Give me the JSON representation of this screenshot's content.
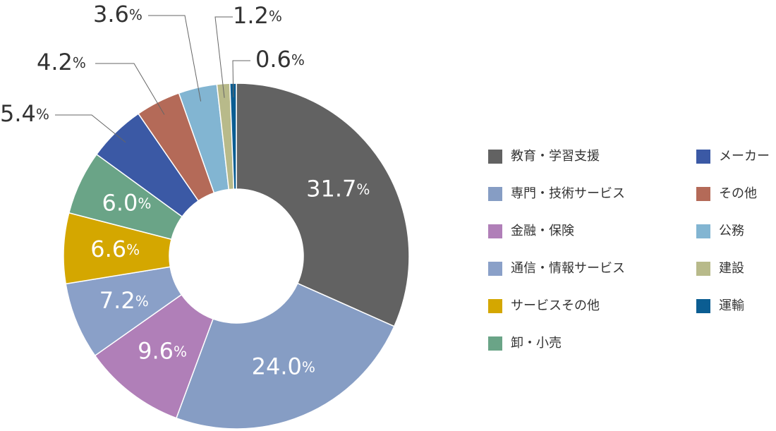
{
  "chart_data": {
    "type": "donut",
    "categories": [
      "教育・学習支援",
      "専門・技術サービス",
      "金融・保険",
      "通信・情報サービス",
      "サービスその他",
      "卸・小売",
      "メーカー",
      "その他",
      "公務",
      "建設",
      "運輸"
    ],
    "values": [
      31.7,
      24.0,
      9.6,
      7.2,
      6.6,
      6.0,
      5.4,
      4.2,
      3.6,
      1.2,
      0.6
    ],
    "value_labels": [
      "31.7%",
      "24.0%",
      "9.6%",
      "7.2%",
      "6.6%",
      "6.0%",
      "5.4%",
      "4.2%",
      "3.6%",
      "1.2%",
      "0.6%"
    ],
    "colors": [
      "#626262",
      "#869dc4",
      "#b07fb8",
      "#8aa0c8",
      "#d4a700",
      "#6aa487",
      "#3b59a5",
      "#b46a58",
      "#82b5d2",
      "#b8ba8a",
      "#0b5d92"
    ]
  }
}
